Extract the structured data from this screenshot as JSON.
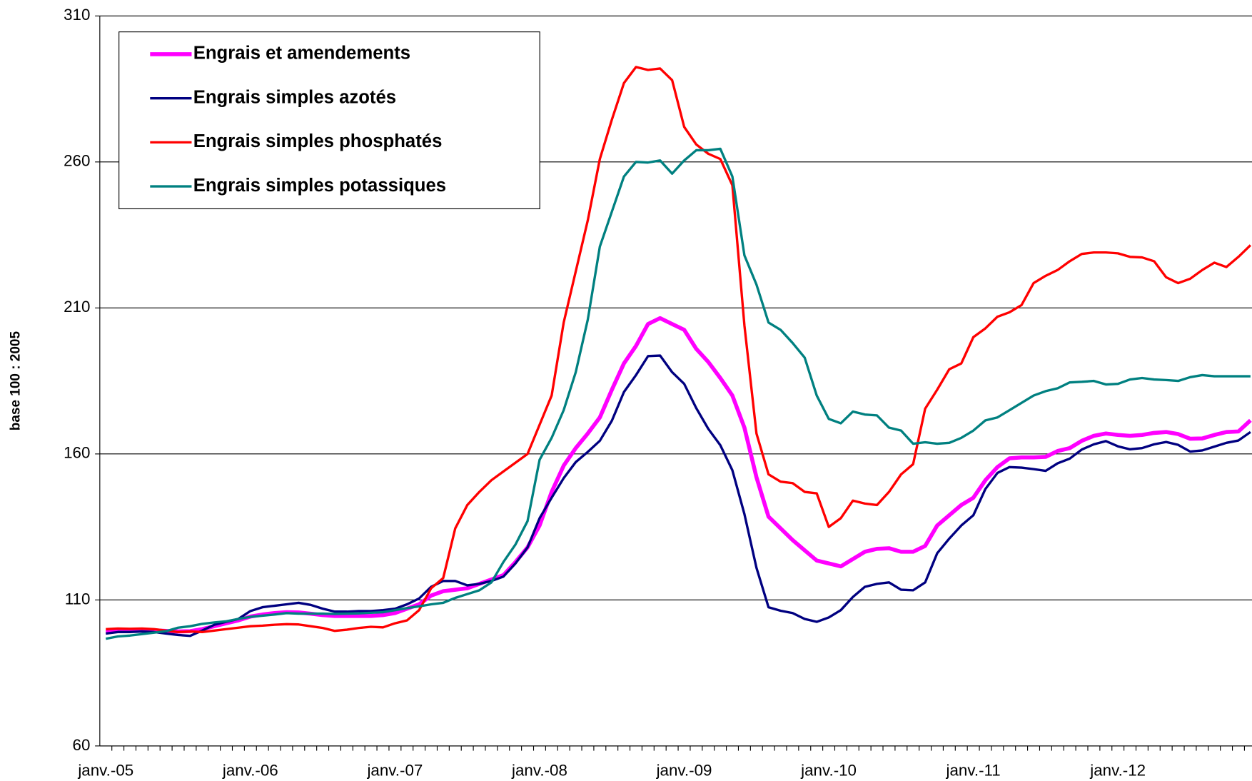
{
  "chart_data": {
    "type": "line",
    "y_label": "base 100 : 2005",
    "categories": [
      "janv.-05",
      null,
      null,
      null,
      null,
      null,
      null,
      null,
      null,
      null,
      null,
      null,
      "janv.-06",
      null,
      null,
      null,
      null,
      null,
      null,
      null,
      null,
      null,
      null,
      null,
      "janv.-07",
      null,
      null,
      null,
      null,
      null,
      null,
      null,
      null,
      null,
      null,
      null,
      "janv.-08",
      null,
      null,
      null,
      null,
      null,
      null,
      null,
      null,
      null,
      null,
      null,
      "janv.-09",
      null,
      null,
      null,
      null,
      null,
      null,
      null,
      null,
      null,
      null,
      null,
      "janv.-10",
      null,
      null,
      null,
      null,
      null,
      null,
      null,
      null,
      null,
      null,
      null,
      "janv.-11",
      null,
      null,
      null,
      null,
      null,
      null,
      null,
      null,
      null,
      null,
      null,
      "janv.-12",
      null,
      null,
      null,
      null,
      null,
      null,
      null,
      null,
      null,
      null,
      null
    ],
    "ylim": [
      60,
      310
    ],
    "yticks": [
      60,
      110,
      160,
      210,
      260,
      310
    ],
    "grid": true,
    "legend": "upper left",
    "series": [
      {
        "name": "Engrais et amendements",
        "color": "#ff00ff",
        "values": [
          99,
          99.3,
          99.5,
          99.7,
          99.6,
          99.4,
          99.2,
          99.3,
          100,
          101,
          102,
          103,
          104.3,
          105,
          105.5,
          105.8,
          105.7,
          105.3,
          104.8,
          104.5,
          104.5,
          104.5,
          104.5,
          104.8,
          105.5,
          107,
          108.5,
          111.5,
          113,
          113.5,
          114,
          115.5,
          117,
          118.5,
          123,
          128,
          135.5,
          147,
          156,
          162,
          167,
          172.5,
          182,
          191,
          197,
          204.5,
          206.5,
          204.5,
          202.5,
          196,
          191.5,
          186,
          180,
          169,
          152,
          138.5,
          134.5,
          130.5,
          127,
          123.5,
          122.5,
          121.5,
          124,
          126.5,
          127.5,
          127.7,
          126.5,
          126.5,
          128.5,
          135.5,
          139,
          142.5,
          145,
          151,
          155.5,
          158.5,
          158.8,
          158.8,
          159,
          161,
          162,
          164.5,
          166.2,
          167,
          166.5,
          166.2,
          166.5,
          167.2,
          167.5,
          166.8,
          165.2,
          165.3,
          166.5,
          167.5,
          167.7,
          171.5
        ]
      },
      {
        "name": "Engrais simples azotés",
        "color": "#000080",
        "values": [
          98.5,
          99,
          99,
          99.2,
          99,
          98.5,
          98,
          97.7,
          99.5,
          101.5,
          102.5,
          103.5,
          106.2,
          107.5,
          108,
          108.5,
          109,
          108.3,
          107,
          106,
          106,
          106.2,
          106.2,
          106.5,
          107,
          108.5,
          110.5,
          114.5,
          116.5,
          116.5,
          115,
          115.5,
          116.5,
          118,
          122.5,
          128,
          138,
          145,
          151.7,
          157.2,
          160.7,
          164.5,
          171.4,
          181.2,
          187,
          193.5,
          193.7,
          188,
          184,
          175.7,
          168.6,
          163,
          154.4,
          139.4,
          121,
          107.5,
          106.3,
          105.5,
          103.5,
          102.5,
          104,
          106.5,
          111,
          114.5,
          115.5,
          116,
          113.5,
          113.3,
          116,
          126,
          131,
          135.5,
          139,
          148,
          153.5,
          155.5,
          155.3,
          154.8,
          154.2,
          156.8,
          158.4,
          161.5,
          163.3,
          164.4,
          162.6,
          161.6,
          162,
          163.3,
          164.1,
          163.1,
          160.8,
          161.2,
          162.5,
          163.8,
          164.6,
          167.5
        ]
      },
      {
        "name": "Engrais simples phosphatés",
        "color": "#ff0000",
        "values": [
          100,
          100.2,
          100.1,
          100.2,
          100,
          99.5,
          99,
          99.2,
          99,
          99.5,
          100,
          100.5,
          101,
          101.2,
          101.5,
          101.7,
          101.6,
          101,
          100.4,
          99.4,
          99.8,
          100.4,
          100.8,
          100.6,
          102,
          103,
          106.5,
          114,
          117.5,
          134.5,
          142.5,
          147,
          151,
          154,
          157,
          160,
          170,
          180,
          205,
          222.5,
          240,
          261,
          274.5,
          287,
          292.5,
          291.5,
          292,
          288,
          272,
          266,
          262.8,
          261,
          252,
          204,
          167,
          153,
          150.5,
          150,
          147,
          146.5,
          135,
          138,
          144,
          143,
          142.5,
          147,
          153,
          156.5,
          175.5,
          182,
          189,
          191,
          200,
          203,
          207,
          208.5,
          211,
          218.5,
          221,
          223,
          226,
          228.5,
          229,
          229,
          228.7,
          227.5,
          227.3,
          226,
          220.5,
          218.5,
          220,
          223,
          225.5,
          224,
          227.5,
          231.5
        ]
      },
      {
        "name": "Engrais simples potassiques",
        "color": "#008080",
        "values": [
          96.7,
          97.5,
          97.8,
          98.3,
          98.8,
          99.3,
          100.5,
          101,
          101.8,
          102.3,
          102.7,
          103.5,
          104.2,
          104.6,
          105,
          105.5,
          105.3,
          105.3,
          105.3,
          105.2,
          105.3,
          105.4,
          105.6,
          105.8,
          106.5,
          107.2,
          107.8,
          108.5,
          109,
          110.7,
          112,
          113.3,
          116,
          123,
          129,
          137,
          158,
          165.5,
          175,
          188,
          206,
          231,
          243,
          255,
          260,
          259.8,
          260.5,
          256,
          260.5,
          264,
          264,
          264.5,
          255,
          228,
          218,
          205,
          202.5,
          198,
          193,
          180,
          172,
          170.5,
          174.5,
          173.5,
          173.2,
          169,
          168,
          163.5,
          164,
          163.5,
          163.8,
          165.5,
          168,
          171.5,
          172.5,
          175,
          177.5,
          180,
          181.5,
          182.5,
          184.5,
          184.7,
          185,
          183.8,
          184,
          185.5,
          186,
          185.5,
          185.3,
          185,
          186.3,
          187,
          186.6,
          186.6,
          186.6,
          186.6
        ]
      }
    ]
  }
}
